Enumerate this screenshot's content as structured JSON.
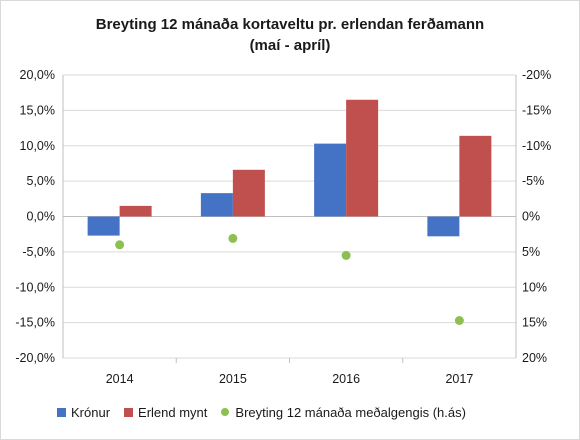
{
  "chart_data": {
    "type": "bar",
    "title": "Breyting 12 mánaða kortaveltu pr. erlendan ferðamann",
    "subtitle": "(maí - apríl)",
    "categories": [
      "2014",
      "2015",
      "2016",
      "2017"
    ],
    "series": [
      {
        "name": "Krónur",
        "type": "bar",
        "axis": "left",
        "color": "#4472c4",
        "values": [
          -2.7,
          3.3,
          10.3,
          -2.8
        ]
      },
      {
        "name": "Erlend mynt",
        "type": "bar",
        "axis": "left",
        "color": "#c0504d",
        "values": [
          1.5,
          6.6,
          16.5,
          11.4
        ]
      },
      {
        "name": "Breyting 12 mánaða meðalgengis (h.ás)",
        "type": "scatter",
        "axis": "right",
        "color": "#8cc152",
        "values": [
          4.0,
          3.1,
          5.5,
          14.7
        ]
      }
    ],
    "y_left": {
      "min": -20,
      "max": 20,
      "step": 5,
      "tick_labels": [
        "20,0%",
        "15,0%",
        "10,0%",
        "5,0%",
        "0,0%",
        "-5,0%",
        "-10,0%",
        "-15,0%",
        "-20,0%"
      ]
    },
    "y_right": {
      "min": -20,
      "max": 20,
      "step": 5,
      "reversed": true,
      "tick_labels": [
        "-20%",
        "-15%",
        "-10%",
        "-5%",
        "0%",
        "5%",
        "10%",
        "15%",
        "20%"
      ]
    },
    "grid": true,
    "legend_position": "bottom"
  }
}
